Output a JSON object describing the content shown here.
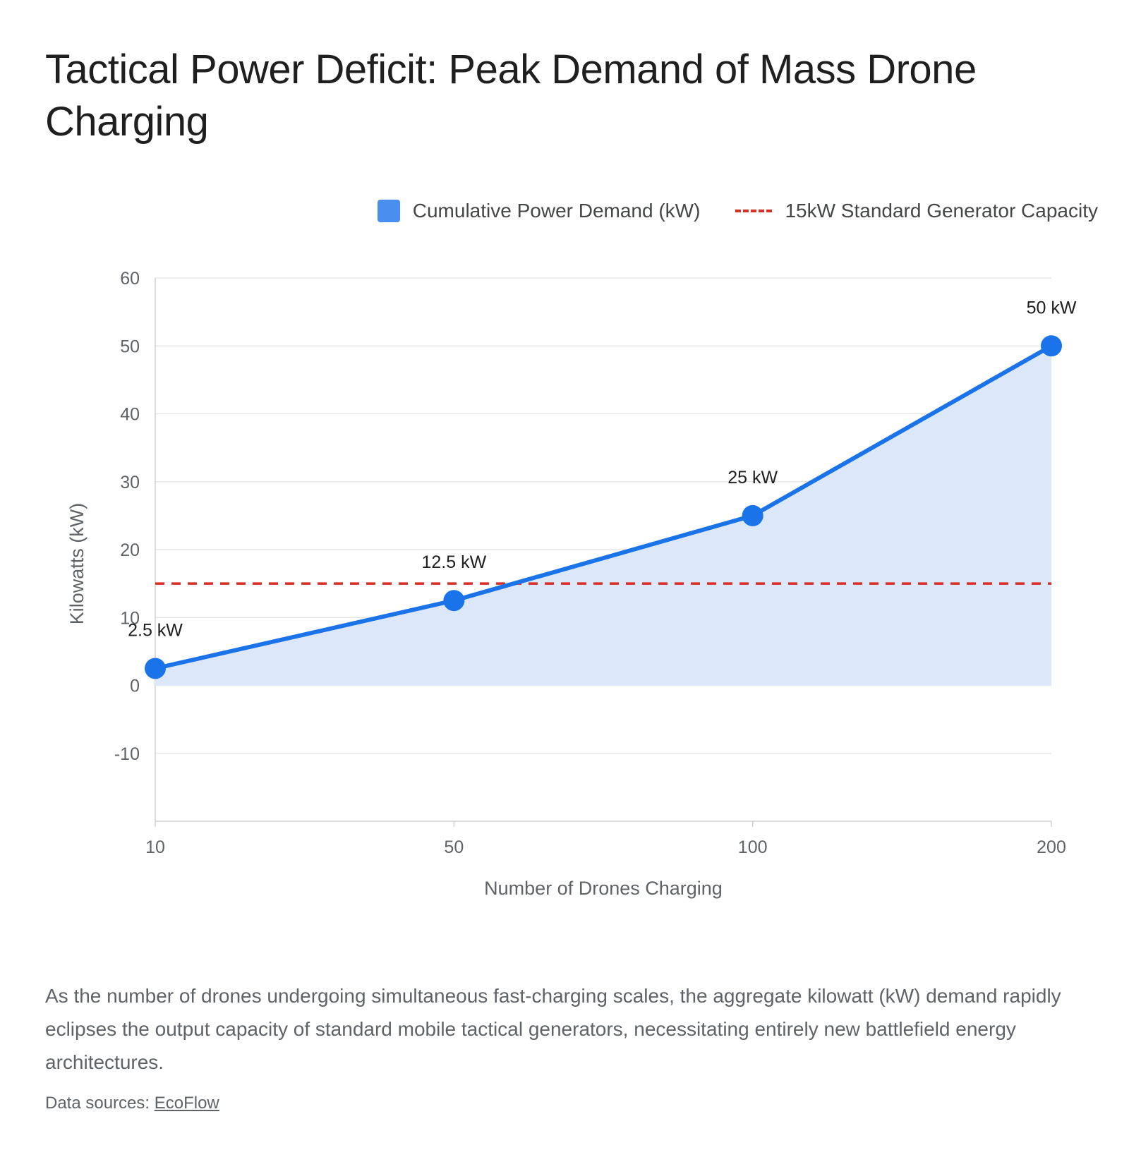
{
  "title": "Tactical Power Deficit: Peak Demand of Mass Drone Charging",
  "legend": {
    "series_label": "Cumulative Power Demand (kW)",
    "threshold_label": "15kW Standard Generator Capacity"
  },
  "colors": {
    "series": "#1a73e8",
    "legend_series": "#4a8ff0",
    "area_fill": "#dce8f9",
    "threshold": "#d93025",
    "grid": "#e6e6e6",
    "axis_text": "#5f6368"
  },
  "chart_data": {
    "type": "area",
    "xlabel": "Number of Drones Charging",
    "ylabel": "Kilowatts (kW)",
    "categories": [
      "10",
      "50",
      "100",
      "200"
    ],
    "series": [
      {
        "name": "Cumulative Power Demand (kW)",
        "values": [
          2.5,
          12.5,
          25,
          50
        ],
        "data_labels": [
          "2.5 kW",
          "12.5 kW",
          "25 kW",
          "50 kW"
        ]
      }
    ],
    "threshold": {
      "name": "15kW Standard Generator Capacity",
      "value": 15,
      "style": "dashed"
    },
    "ylim": [
      -20,
      60
    ],
    "yticks": [
      -10,
      0,
      10,
      20,
      30,
      40,
      50,
      60
    ],
    "grid": true,
    "legend_position": "top-right"
  },
  "caption": "As the number of drones undergoing simultaneous fast-charging scales, the aggregate kilowatt (kW) demand rapidly eclipses the output capacity of standard mobile tactical generators, necessitating entirely new battlefield energy architectures.",
  "sources": {
    "prefix": "Data sources: ",
    "link_text": "EcoFlow"
  }
}
